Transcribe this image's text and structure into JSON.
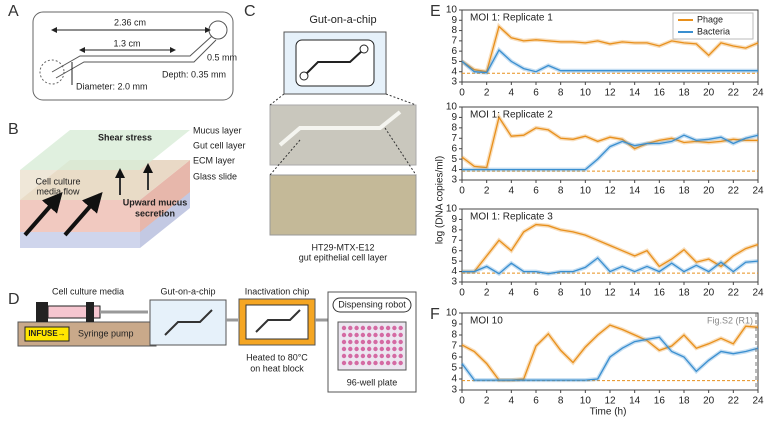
{
  "panel_a": {
    "letter": "A",
    "length_total": "2.36 cm",
    "length_channel": "1.3 cm",
    "width": "0.5 mm",
    "depth": "Depth: 0.35 mm",
    "diameter": "Diameter: 2.0 mm"
  },
  "panel_b": {
    "letter": "B",
    "layers": [
      "Mucus layer",
      "Gut cell layer",
      "ECM layer",
      "Glass slide"
    ],
    "shear": "Shear stress",
    "flow": [
      "Cell culture",
      "media flow"
    ],
    "mucus": [
      "Upward mucus",
      "secretion"
    ]
  },
  "panel_c": {
    "letter": "C",
    "title": "Gut-on-a-chip",
    "caption": [
      "HT29-MTX-E12",
      "gut epithelial cell layer"
    ]
  },
  "panel_d": {
    "letter": "D",
    "media": "Cell culture media",
    "pump_button": "INFUSE→",
    "pump": "Syringe pump",
    "chip": "Gut-on-a-chip",
    "inactivation": "Inactivation chip",
    "heat": [
      "Heated to 80°C",
      "on heat block"
    ],
    "robot": "Dispensing robot",
    "plate": "96-well plate"
  },
  "shared_axes": {
    "x_label": "Time (h)",
    "y_label": "log (DNA copies/ml)"
  },
  "chart_data": [
    {
      "type": "line",
      "panel": "E",
      "title": "MOI 1: Replicate 1",
      "legend": "upper right",
      "x": [
        0,
        1,
        2,
        3,
        4,
        5,
        6,
        7,
        8,
        9,
        10,
        11,
        12,
        13,
        14,
        15,
        16,
        17,
        18,
        19,
        20,
        21,
        22,
        23,
        24
      ],
      "series": [
        {
          "name": "Phage",
          "color": "#e8901c",
          "values": [
            5.0,
            4.2,
            4.0,
            8.4,
            7.3,
            7.0,
            7.1,
            7.0,
            6.9,
            6.9,
            6.8,
            7.0,
            6.7,
            6.9,
            6.8,
            6.8,
            6.5,
            7.0,
            6.8,
            6.7,
            5.6,
            6.8,
            6.5,
            6.3,
            6.8
          ]
        },
        {
          "name": "Bacteria",
          "color": "#3a8fd0",
          "values": [
            5.0,
            4.0,
            3.9,
            6.1,
            5.0,
            4.3,
            4.0,
            4.6,
            4.1,
            4.1,
            4.1,
            4.1,
            4.1,
            4.1,
            4.1,
            4.1,
            4.1,
            4.1,
            4.1,
            4.1,
            4.1,
            4.1,
            4.1,
            4.1,
            4.1
          ]
        }
      ],
      "reference_line": 3.85,
      "xlim": [
        0,
        24
      ],
      "ylim": [
        3,
        10
      ],
      "xticks": [
        0,
        2,
        4,
        6,
        8,
        10,
        12,
        14,
        16,
        18,
        20,
        22,
        24
      ],
      "yticks": [
        3,
        4,
        5,
        6,
        7,
        8,
        9,
        10
      ]
    },
    {
      "type": "line",
      "title": "MOI 1: Replicate 2",
      "x": [
        0,
        1,
        2,
        3,
        4,
        5,
        6,
        7,
        8,
        9,
        10,
        11,
        12,
        13,
        14,
        15,
        16,
        17,
        18,
        19,
        20,
        21,
        22,
        23,
        24
      ],
      "series": [
        {
          "color": "#e8901c",
          "values": [
            5.2,
            4.3,
            4.2,
            9.0,
            7.2,
            7.3,
            8.0,
            7.8,
            7.0,
            6.9,
            7.2,
            6.7,
            7.1,
            6.9,
            6.0,
            6.5,
            6.8,
            7.0,
            6.6,
            6.7,
            6.6,
            6.7,
            6.9,
            6.8,
            6.8
          ]
        },
        {
          "color": "#3a8fd0",
          "values": [
            4.0,
            4.0,
            4.0,
            4.0,
            4.0,
            4.0,
            4.0,
            4.0,
            4.0,
            4.0,
            4.0,
            5.0,
            6.2,
            6.7,
            6.3,
            6.5,
            6.5,
            6.7,
            7.3,
            6.8,
            6.9,
            7.1,
            6.5,
            7.0,
            7.3
          ]
        }
      ],
      "reference_line": 3.85,
      "xlim": [
        0,
        24
      ],
      "ylim": [
        3,
        10
      ],
      "xticks": [
        0,
        2,
        4,
        6,
        8,
        10,
        12,
        14,
        16,
        18,
        20,
        22,
        24
      ],
      "yticks": [
        3,
        4,
        5,
        6,
        7,
        8,
        9,
        10
      ]
    },
    {
      "type": "line",
      "title": "MOI 1: Replicate 3",
      "x": [
        0,
        1,
        2,
        3,
        4,
        5,
        6,
        7,
        8,
        9,
        10,
        11,
        12,
        13,
        14,
        15,
        16,
        17,
        18,
        19,
        20,
        21,
        22,
        23,
        24
      ],
      "series": [
        {
          "color": "#e8901c",
          "values": [
            4.0,
            4.0,
            5.5,
            7.0,
            6.0,
            7.8,
            8.5,
            8.4,
            8.0,
            7.8,
            7.5,
            7.0,
            6.5,
            6.0,
            5.5,
            6.0,
            4.5,
            5.2,
            6.1,
            4.9,
            5.2,
            4.5,
            5.5,
            6.2,
            6.6
          ]
        },
        {
          "color": "#3a8fd0",
          "values": [
            4.0,
            4.0,
            4.5,
            3.8,
            4.8,
            4.0,
            4.0,
            3.8,
            4.0,
            4.0,
            4.4,
            5.3,
            4.0,
            4.5,
            4.0,
            4.5,
            4.0,
            4.8,
            4.0,
            4.6,
            4.0,
            4.9,
            4.0,
            4.9,
            5.0
          ]
        }
      ],
      "reference_line": 3.85,
      "xlim": [
        0,
        24
      ],
      "ylim": [
        3,
        10
      ],
      "xticks": [
        0,
        2,
        4,
        6,
        8,
        10,
        12,
        14,
        16,
        18,
        20,
        22,
        24
      ],
      "yticks": [
        3,
        4,
        5,
        6,
        7,
        8,
        9,
        10
      ]
    },
    {
      "type": "line",
      "panel": "F",
      "title": "MOI 10",
      "annotation": "Fig.S2 (R1)",
      "x": [
        0,
        1,
        2,
        3,
        4,
        5,
        6,
        7,
        8,
        9,
        10,
        11,
        12,
        13,
        14,
        15,
        16,
        17,
        18,
        19,
        20,
        21,
        22,
        23,
        24
      ],
      "series": [
        {
          "color": "#e8901c",
          "values": [
            7.1,
            6.5,
            5.4,
            3.9,
            3.9,
            4.0,
            7.0,
            8.1,
            6.6,
            5.5,
            6.9,
            8.0,
            8.9,
            8.5,
            8.0,
            7.5,
            6.6,
            7.0,
            8.0,
            6.8,
            7.2,
            7.7,
            7.2,
            8.8,
            8.7
          ]
        },
        {
          "color": "#3a8fd0",
          "values": [
            5.4,
            3.9,
            3.9,
            3.9,
            3.9,
            3.9,
            3.9,
            3.9,
            3.9,
            3.9,
            3.9,
            4.0,
            6.0,
            6.8,
            7.4,
            7.6,
            7.8,
            6.5,
            6.0,
            4.7,
            5.7,
            6.5,
            6.3,
            6.5,
            6.8
          ]
        }
      ],
      "reference_line": 3.85,
      "xlim": [
        0,
        24
      ],
      "ylim": [
        3,
        10
      ],
      "xticks": [
        0,
        2,
        4,
        6,
        8,
        10,
        12,
        14,
        16,
        18,
        20,
        22,
        24
      ],
      "yticks": [
        3,
        4,
        5,
        6,
        7,
        8,
        9,
        10
      ]
    }
  ]
}
